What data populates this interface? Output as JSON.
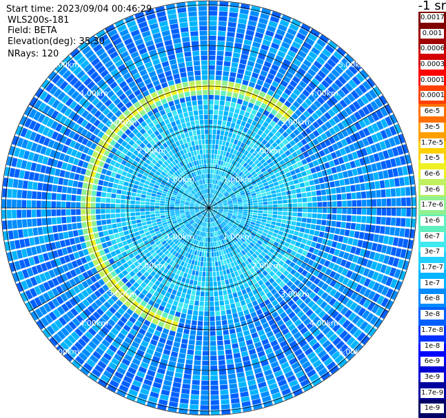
{
  "info": {
    "start_time": "Start time: 2023/09/04 00:46:29",
    "instrument": "WLS200s-181",
    "field": "Field: BETA",
    "elevation": "Elevation(deg): 35.30",
    "nrays": "NRays: 120"
  },
  "unit_label": "-1 sr",
  "chart_data": {
    "type": "heatmap",
    "subtype": "polar-ppi",
    "title": "",
    "field": "BETA",
    "n_rays": 120,
    "elevation_deg": 35.3,
    "range_rings_km": [
      1.0,
      2.0,
      3.0,
      4.0,
      5.0
    ],
    "ring_labels": [
      "1.00km",
      "2.00km",
      "3.00km",
      "4.00km",
      "5.00km"
    ],
    "max_range_km": 5.1,
    "spokes_deg": [
      0,
      30,
      60,
      90,
      120,
      150,
      180,
      210,
      240,
      270,
      300,
      330
    ],
    "background_value": "6e-8",
    "inner_region_value": "1.7e-7",
    "aerosol_arc": {
      "range_km": 3.0,
      "azimuth_from_deg": 195,
      "azimuth_to_deg": 40,
      "peak_value": "1e-5"
    },
    "colorbar": {
      "colors": [
        "#000066",
        "#00009e",
        "#0000d4",
        "#0000ff",
        "#0030ff",
        "#0060ff",
        "#008cff",
        "#00b4ff",
        "#20d0ff",
        "#40e8f0",
        "#60f0c0",
        "#90f090",
        "#c0f060",
        "#f0f020",
        "#ffd000",
        "#ffa000",
        "#ff7000",
        "#ff4000",
        "#ff0000",
        "#d40000",
        "#a00000",
        "#800000"
      ],
      "labels": [
        "0.0017",
        "0.001",
        "0.0006",
        "0.0003",
        "0.00017",
        "0.0001",
        "6e-5",
        "3e-5",
        "1.7e-5",
        "1e-5",
        "6e-6",
        "3e-6",
        "1.7e-6",
        "1e-6",
        "6e-7",
        "3e-7",
        "1.7e-7",
        "1e-7",
        "6e-8",
        "3e-8",
        "1.7e-8",
        "1e-8",
        "6e-9",
        "3e-9",
        "1.7e-9",
        "1e-9"
      ]
    }
  }
}
